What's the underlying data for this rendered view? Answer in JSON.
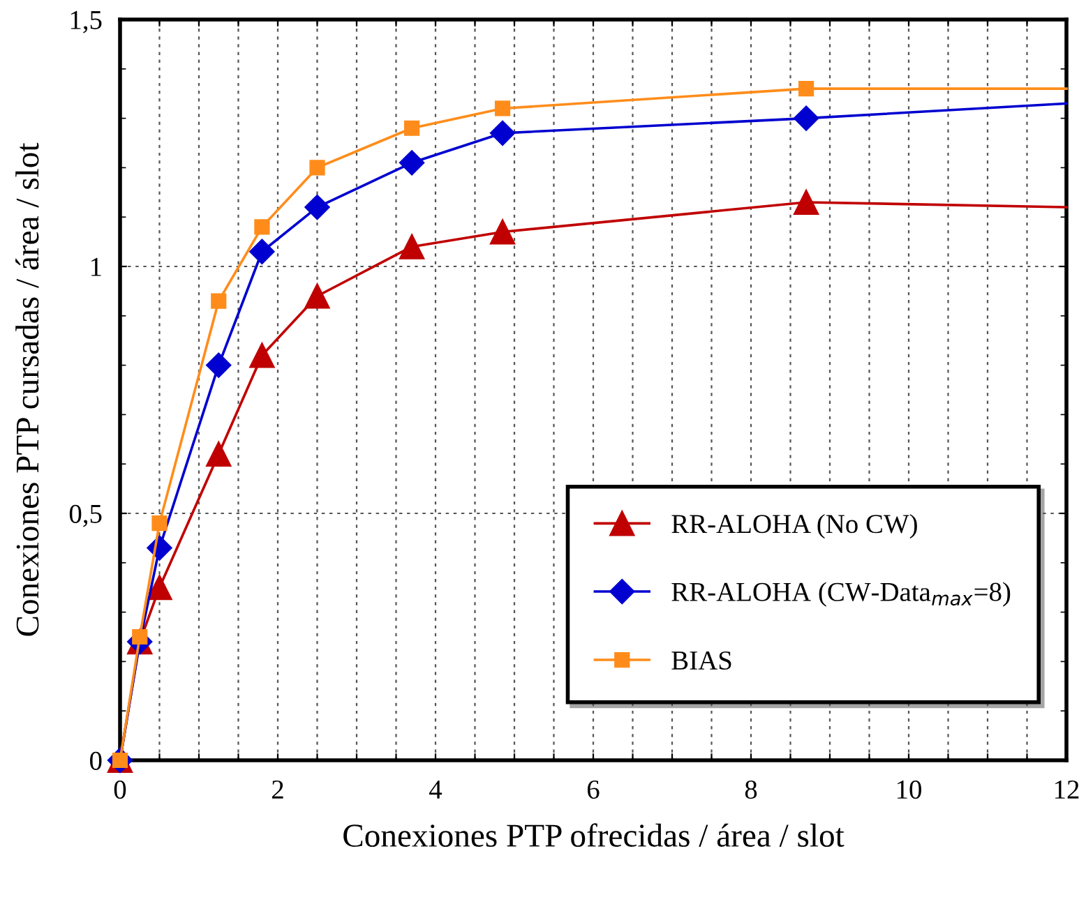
{
  "chart_data": {
    "type": "line",
    "xlabel": "Conexiones PTP ofrecidas / área / slot",
    "ylabel": "Conexiones PTP cursadas / área / slot",
    "x": [
      0,
      0.25,
      0.5,
      1.25,
      1.8,
      2.5,
      3.7,
      4.85,
      8.7,
      12
    ],
    "series": [
      {
        "name": "RR-ALOHA (No CW)",
        "color": "#c00000",
        "marker": "triangle",
        "values": [
          0,
          0.24,
          0.35,
          0.62,
          0.82,
          0.94,
          1.04,
          1.07,
          1.13,
          1.12
        ]
      },
      {
        "name": "RR-ALOHA (CW-Data$_{max}$=8)",
        "color": "#0000d0",
        "marker": "diamond",
        "values": [
          0,
          0.24,
          0.43,
          0.8,
          1.03,
          1.12,
          1.21,
          1.27,
          1.3,
          1.33
        ]
      },
      {
        "name": "BIAS",
        "color": "#ff8c1a",
        "marker": "square",
        "values": [
          0,
          0.25,
          0.48,
          0.93,
          1.08,
          1.2,
          1.28,
          1.32,
          1.36,
          1.36
        ]
      }
    ],
    "xlim": [
      0,
      12
    ],
    "xticks": [
      0,
      {
        "value": 0.5,
        "label": null
      },
      {
        "value": 1,
        "label": null
      },
      {
        "value": 1.5,
        "label": null
      },
      2,
      {
        "value": 2.5,
        "label": null
      },
      {
        "value": 3,
        "label": null
      },
      {
        "value": 3.5,
        "label": null
      },
      4,
      {
        "value": 4.5,
        "label": null
      },
      {
        "value": 5,
        "label": null
      },
      {
        "value": 5.5,
        "label": null
      },
      6,
      {
        "value": 6.5,
        "label": null
      },
      {
        "value": 7,
        "label": null
      },
      {
        "value": 7.5,
        "label": null
      },
      8,
      {
        "value": 8.5,
        "label": null
      },
      {
        "value": 9,
        "label": null
      },
      {
        "value": 9.5,
        "label": null
      },
      10,
      {
        "value": 10.5,
        "label": null
      },
      {
        "value": 11,
        "label": null
      },
      {
        "value": 11.5,
        "label": null
      },
      12
    ],
    "ylim": [
      0,
      1.5
    ],
    "yticks": [
      0,
      {
        "value": 0.5,
        "label": "0,5"
      },
      1,
      {
        "value": 1.5,
        "label": "1,5"
      }
    ],
    "grid": true,
    "legend": "bottom right",
    "line_style": "solid"
  }
}
